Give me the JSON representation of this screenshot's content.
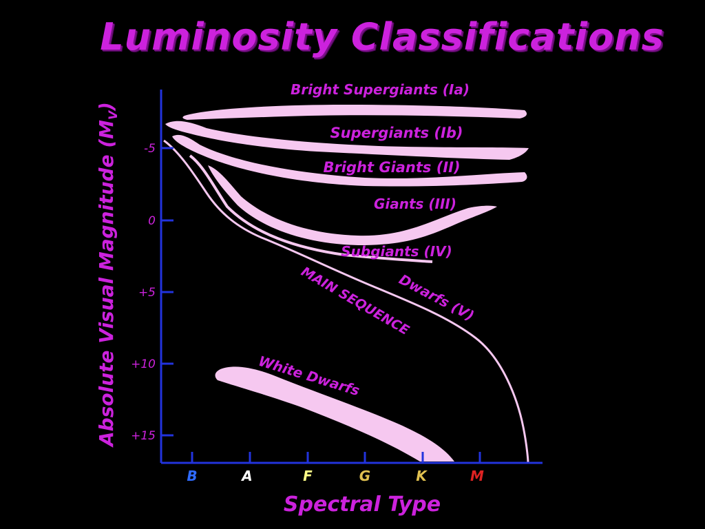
{
  "title": "Luminosity Classifications",
  "axes": {
    "y_label": "Absolute Visual Magnitude (M",
    "y_label_sub": "V",
    "y_label_close": ")",
    "x_label": "Spectral Type",
    "y_ticks": [
      "-5",
      "0",
      "+5",
      "+10",
      "+15"
    ],
    "x_ticks": [
      "B",
      "A",
      "F",
      "G",
      "K",
      "M"
    ],
    "x_tick_colors": [
      "#2f6bff",
      "#ffffff",
      "#ffff88",
      "#e0c050",
      "#e0c050",
      "#dd2222"
    ],
    "axis_color": "#2233dd"
  },
  "regions": {
    "bright_supergiants": "Bright Supergiants (Ia)",
    "supergiants": "Supergiants (Ib)",
    "bright_giants": "Bright Giants (II)",
    "giants": "Giants (III)",
    "subgiants": "Subgiants (IV)",
    "dwarfs": "Dwarfs (V)",
    "main_sequence": "MAIN SEQUENCE",
    "white_dwarfs": "White Dwarfs"
  },
  "colors": {
    "label": "#cc22dd",
    "band": "#f6c8f0",
    "background": "#000000"
  }
}
